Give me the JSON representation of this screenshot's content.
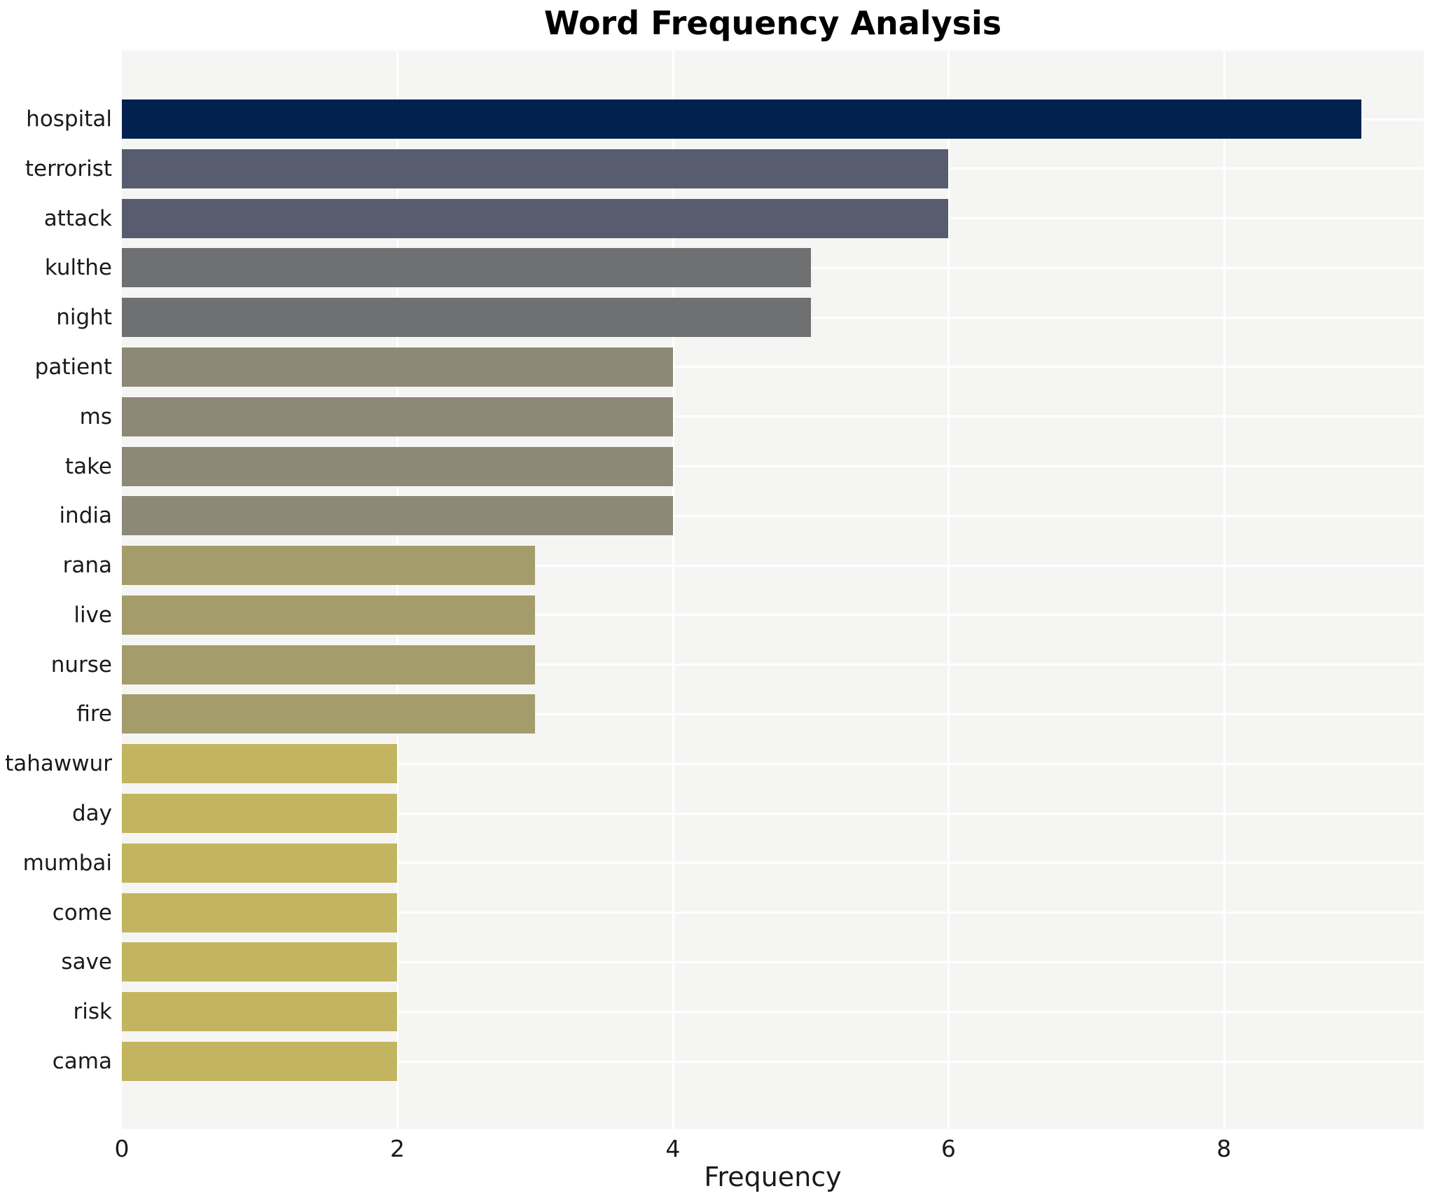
{
  "chart_data": {
    "type": "bar",
    "orientation": "horizontal",
    "title": "Word Frequency Analysis",
    "xlabel": "Frequency",
    "ylabel": "",
    "categories": [
      "hospital",
      "terrorist",
      "attack",
      "kulthe",
      "night",
      "patient",
      "ms",
      "take",
      "india",
      "rana",
      "live",
      "nurse",
      "fire",
      "tahawwur",
      "day",
      "mumbai",
      "come",
      "save",
      "risk",
      "cama"
    ],
    "values": [
      9,
      6,
      6,
      5,
      5,
      4,
      4,
      4,
      4,
      3,
      3,
      3,
      3,
      2,
      2,
      2,
      2,
      2,
      2,
      2
    ],
    "bar_colors": [
      "#01224e",
      "#575d6e",
      "#575d6e",
      "#6f7072",
      "#6f7072",
      "#8d8977",
      "#8d8977",
      "#8d8977",
      "#8d8977",
      "#a59c6b",
      "#a59c6b",
      "#a59c6b",
      "#a59c6b",
      "#c3b55f",
      "#c3b55f",
      "#c3b55f",
      "#c3b55f",
      "#c3b55f",
      "#c3b55f",
      "#c3b55f"
    ],
    "xticks": [
      0,
      2,
      4,
      6,
      8
    ],
    "xlim": [
      0,
      9.45
    ],
    "grid": true,
    "legend_position": "none",
    "colors": {
      "plot_background": "#f5f5f4",
      "figure_background": "#ffffff",
      "gridline": "#ffffff",
      "tick_text": "#1a1a1a",
      "title_text": "#000000"
    }
  }
}
